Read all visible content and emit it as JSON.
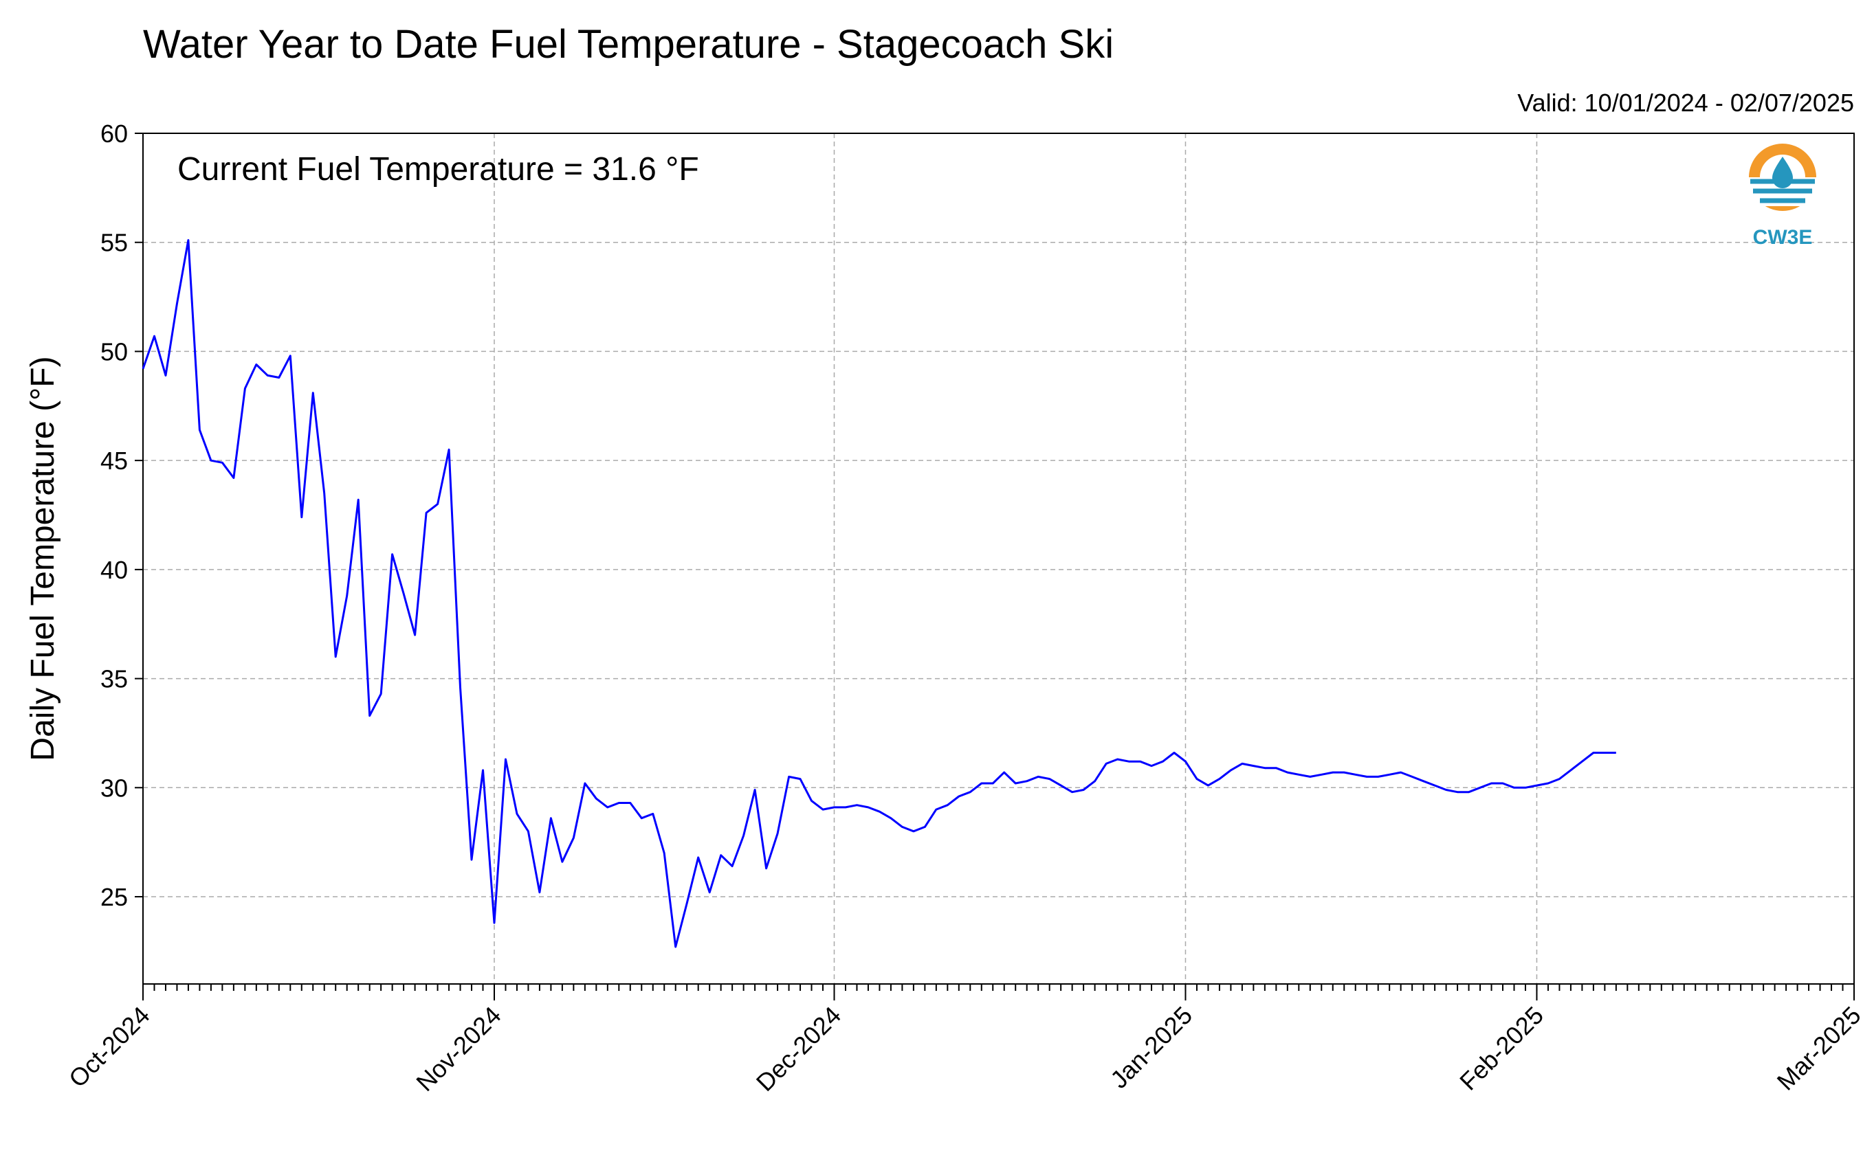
{
  "title": "Water Year to Date Fuel Temperature - Stagecoach Ski",
  "valid_text": "Valid: 10/01/2024 - 02/07/2025",
  "annotation": "Current Fuel Temperature = 31.6 °F",
  "logo": {
    "text": "CW3E",
    "icon": "cw3e-water-drop-logo",
    "colors": {
      "orange": "#f39a2a",
      "blue": "#2596be"
    }
  },
  "chart_data": {
    "type": "line",
    "title": "Water Year to Date Fuel Temperature - Stagecoach Ski",
    "ylabel": "Daily Fuel Temperature (°F)",
    "xlabel": "",
    "ylim": [
      21,
      60
    ],
    "xlim": [
      "2024-10-01",
      "2025-03-01"
    ],
    "yticks": [
      25,
      30,
      35,
      40,
      45,
      50,
      55,
      60
    ],
    "xticks": [
      {
        "date": "2024-10-01",
        "label": "Oct-2024"
      },
      {
        "date": "2024-11-01",
        "label": "Nov-2024"
      },
      {
        "date": "2024-12-01",
        "label": "Dec-2024"
      },
      {
        "date": "2025-01-01",
        "label": "Jan-2025"
      },
      {
        "date": "2025-02-01",
        "label": "Feb-2025"
      },
      {
        "date": "2025-03-01",
        "label": "Mar-2025"
      }
    ],
    "grid": true,
    "line_color": "#0000ff",
    "series": [
      {
        "start_date": "2024-10-01",
        "values": [
          49.2,
          50.7,
          48.9,
          52.2,
          55.1,
          46.4,
          45.0,
          44.9,
          44.2,
          48.3,
          49.4,
          48.9,
          48.8,
          49.8,
          42.4,
          48.1,
          43.5,
          36.0,
          38.8,
          43.2,
          33.3,
          34.3,
          40.7,
          38.9,
          37.0,
          42.6,
          43.0,
          45.5,
          34.6,
          26.7,
          30.8,
          23.8,
          31.3,
          28.8,
          28.0,
          25.2,
          28.6,
          26.6,
          27.7,
          30.2,
          29.5,
          29.1,
          29.3,
          29.3,
          28.6,
          28.8,
          27.0,
          22.7,
          24.7,
          26.8,
          25.2,
          26.9,
          26.4,
          27.8,
          29.9,
          26.3,
          27.9,
          30.5,
          30.4,
          29.4,
          29.0,
          29.1,
          29.1,
          29.2,
          29.1,
          28.9,
          28.6,
          28.2,
          28.0,
          28.2,
          29.0,
          29.2,
          29.6,
          29.8,
          30.2,
          30.2,
          30.7,
          30.2,
          30.3,
          30.5,
          30.4,
          30.1,
          29.8,
          29.9,
          30.3,
          31.1,
          31.3,
          31.2,
          31.2,
          31.0,
          31.2,
          31.6,
          31.2,
          30.4,
          30.1,
          30.4,
          30.8,
          31.1,
          31.0,
          30.9,
          30.9,
          30.7,
          30.6,
          30.5,
          30.6,
          30.7,
          30.7,
          30.6,
          30.5,
          30.5,
          30.6,
          30.7,
          30.5,
          30.3,
          30.1,
          29.9,
          29.8,
          29.8,
          30.0,
          30.2,
          30.2,
          30.0,
          30.0,
          30.1,
          30.2,
          30.4,
          30.8,
          31.2,
          31.6,
          31.6,
          31.6
        ]
      }
    ]
  }
}
